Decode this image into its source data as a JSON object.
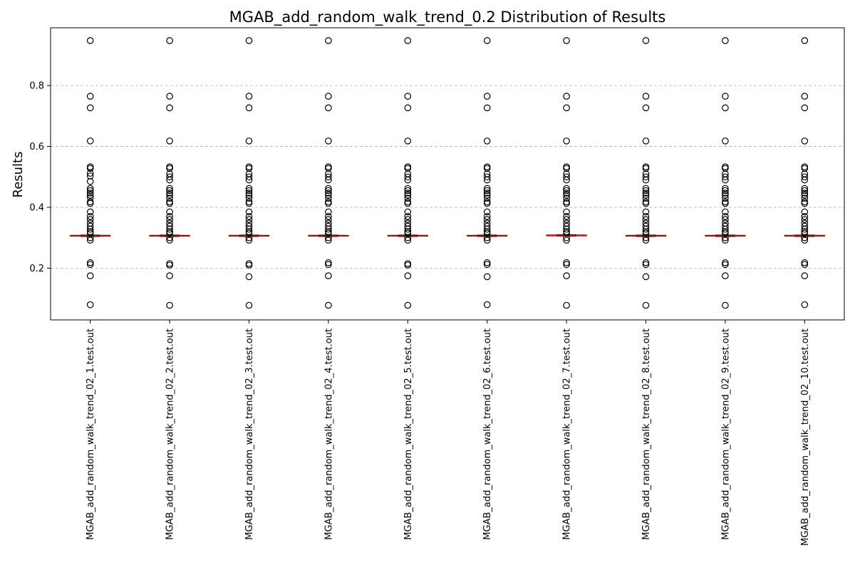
{
  "chart_data": {
    "type": "box",
    "title": "MGAB_add_random_walk_trend_0.2 Distribution of Results",
    "xlabel": "",
    "ylabel": "Results",
    "ylim": [
      0.03,
      0.99
    ],
    "yticks": [
      0.2,
      0.4,
      0.6,
      0.8
    ],
    "grid": "y-dashed",
    "colors": {
      "median": "#ff0000",
      "box": "#000000",
      "grid": "#b0b0b0",
      "outlier_edge": "#000000"
    },
    "categories": [
      "MGAB_add_random_walk_trend_02_1.test.out",
      "MGAB_add_random_walk_trend_02_2.test.out",
      "MGAB_add_random_walk_trend_02_3.test.out",
      "MGAB_add_random_walk_trend_02_4.test.out",
      "MGAB_add_random_walk_trend_02_5.test.out",
      "MGAB_add_random_walk_trend_02_6.test.out",
      "MGAB_add_random_walk_trend_02_7.test.out",
      "MGAB_add_random_walk_trend_02_8.test.out",
      "MGAB_add_random_walk_trend_02_9.test.out",
      "MGAB_add_random_walk_trend_02_10.test.out"
    ],
    "series": [
      {
        "q1": 0.305,
        "median": 0.306,
        "q3": 0.308,
        "whisker_low": 0.304,
        "whisker_high": 0.309,
        "outliers": [
          0.948,
          0.765,
          0.727,
          0.618,
          0.533,
          0.528,
          0.512,
          0.503,
          0.485,
          0.462,
          0.455,
          0.447,
          0.44,
          0.432,
          0.418,
          0.413,
          0.385,
          0.37,
          0.36,
          0.348,
          0.338,
          0.328,
          0.32,
          0.315,
          0.3,
          0.292,
          0.218,
          0.212,
          0.175,
          0.08
        ]
      },
      {
        "q1": 0.305,
        "median": 0.306,
        "q3": 0.308,
        "whisker_low": 0.304,
        "whisker_high": 0.309,
        "outliers": [
          0.948,
          0.765,
          0.727,
          0.618,
          0.533,
          0.528,
          0.51,
          0.5,
          0.49,
          0.462,
          0.455,
          0.447,
          0.44,
          0.43,
          0.418,
          0.413,
          0.385,
          0.37,
          0.36,
          0.348,
          0.338,
          0.328,
          0.32,
          0.315,
          0.3,
          0.292,
          0.215,
          0.21,
          0.175,
          0.078
        ]
      },
      {
        "q1": 0.305,
        "median": 0.306,
        "q3": 0.308,
        "whisker_low": 0.304,
        "whisker_high": 0.309,
        "outliers": [
          0.948,
          0.765,
          0.727,
          0.618,
          0.533,
          0.528,
          0.51,
          0.5,
          0.49,
          0.462,
          0.455,
          0.447,
          0.44,
          0.43,
          0.418,
          0.413,
          0.385,
          0.37,
          0.36,
          0.348,
          0.338,
          0.328,
          0.32,
          0.315,
          0.3,
          0.292,
          0.215,
          0.21,
          0.172,
          0.078
        ]
      },
      {
        "q1": 0.305,
        "median": 0.306,
        "q3": 0.308,
        "whisker_low": 0.304,
        "whisker_high": 0.309,
        "outliers": [
          0.948,
          0.765,
          0.727,
          0.618,
          0.533,
          0.528,
          0.51,
          0.5,
          0.49,
          0.462,
          0.455,
          0.447,
          0.44,
          0.43,
          0.418,
          0.413,
          0.385,
          0.37,
          0.36,
          0.348,
          0.338,
          0.328,
          0.32,
          0.315,
          0.3,
          0.292,
          0.218,
          0.212,
          0.175,
          0.078
        ]
      },
      {
        "q1": 0.305,
        "median": 0.306,
        "q3": 0.308,
        "whisker_low": 0.304,
        "whisker_high": 0.309,
        "outliers": [
          0.948,
          0.765,
          0.727,
          0.618,
          0.533,
          0.528,
          0.51,
          0.5,
          0.49,
          0.462,
          0.455,
          0.447,
          0.44,
          0.43,
          0.418,
          0.413,
          0.385,
          0.37,
          0.36,
          0.348,
          0.338,
          0.328,
          0.32,
          0.315,
          0.3,
          0.292,
          0.215,
          0.21,
          0.175,
          0.078
        ]
      },
      {
        "q1": 0.305,
        "median": 0.306,
        "q3": 0.308,
        "whisker_low": 0.304,
        "whisker_high": 0.309,
        "outliers": [
          0.948,
          0.765,
          0.727,
          0.618,
          0.533,
          0.528,
          0.51,
          0.5,
          0.49,
          0.462,
          0.455,
          0.447,
          0.44,
          0.43,
          0.418,
          0.413,
          0.385,
          0.37,
          0.36,
          0.348,
          0.338,
          0.328,
          0.32,
          0.315,
          0.3,
          0.292,
          0.218,
          0.212,
          0.172,
          0.08
        ]
      },
      {
        "q1": 0.306,
        "median": 0.307,
        "q3": 0.309,
        "whisker_low": 0.305,
        "whisker_high": 0.31,
        "outliers": [
          0.948,
          0.765,
          0.727,
          0.618,
          0.533,
          0.528,
          0.51,
          0.5,
          0.49,
          0.462,
          0.455,
          0.447,
          0.44,
          0.43,
          0.418,
          0.413,
          0.385,
          0.37,
          0.36,
          0.348,
          0.338,
          0.328,
          0.32,
          0.315,
          0.3,
          0.292,
          0.218,
          0.212,
          0.175,
          0.078
        ]
      },
      {
        "q1": 0.305,
        "median": 0.306,
        "q3": 0.308,
        "whisker_low": 0.304,
        "whisker_high": 0.309,
        "outliers": [
          0.948,
          0.765,
          0.727,
          0.618,
          0.533,
          0.528,
          0.51,
          0.5,
          0.49,
          0.462,
          0.455,
          0.447,
          0.44,
          0.43,
          0.418,
          0.413,
          0.385,
          0.37,
          0.36,
          0.348,
          0.338,
          0.328,
          0.32,
          0.315,
          0.3,
          0.292,
          0.218,
          0.212,
          0.172,
          0.078
        ]
      },
      {
        "q1": 0.305,
        "median": 0.306,
        "q3": 0.308,
        "whisker_low": 0.304,
        "whisker_high": 0.309,
        "outliers": [
          0.948,
          0.765,
          0.727,
          0.618,
          0.533,
          0.528,
          0.51,
          0.5,
          0.49,
          0.462,
          0.455,
          0.447,
          0.44,
          0.43,
          0.418,
          0.413,
          0.385,
          0.37,
          0.36,
          0.348,
          0.338,
          0.328,
          0.32,
          0.315,
          0.3,
          0.292,
          0.218,
          0.212,
          0.175,
          0.078
        ]
      },
      {
        "q1": 0.305,
        "median": 0.306,
        "q3": 0.308,
        "whisker_low": 0.304,
        "whisker_high": 0.309,
        "outliers": [
          0.948,
          0.765,
          0.727,
          0.618,
          0.533,
          0.528,
          0.51,
          0.5,
          0.49,
          0.462,
          0.455,
          0.447,
          0.44,
          0.43,
          0.418,
          0.413,
          0.385,
          0.37,
          0.36,
          0.348,
          0.338,
          0.328,
          0.32,
          0.315,
          0.3,
          0.292,
          0.218,
          0.212,
          0.175,
          0.08
        ]
      }
    ]
  }
}
